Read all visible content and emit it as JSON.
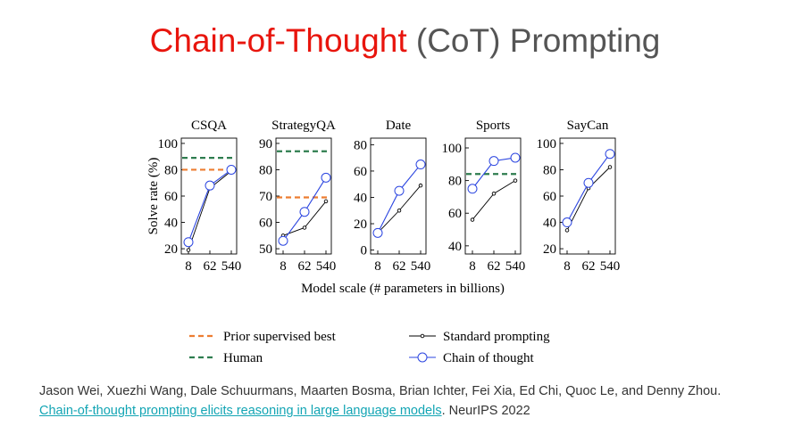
{
  "slide": {
    "title_main": "Chain-of-Thought",
    "title_rest": "(CoT) Prompting",
    "citation_authors": "Jason Wei, Xuezhi Wang, Dale Schuurmans, Maarten Bosma, Brian Ichter, Fei Xia, Ed Chi, Quoc Le, and Denny Zhou.",
    "citation_link": "Chain-of-thought prompting elicits reasoning in large language models",
    "citation_venue": ". NeurIPS 2022"
  },
  "colors": {
    "title_red": "#e8150d",
    "prior_best": "#ed7d31",
    "human": "#2e7d4f",
    "standard": "#000000",
    "cot": "#2b45e0",
    "link": "#13a5b4"
  },
  "chart_data": {
    "type": "line",
    "xlabel": "Model scale (# parameters in billions)",
    "ylabel": "Solve rate (%)",
    "x": [
      8,
      62,
      540
    ],
    "legend": {
      "prior": "Prior supervised best",
      "human": "Human",
      "standard": "Standard prompting",
      "cot": "Chain of thought"
    },
    "panels": [
      {
        "title": "CSQA",
        "ylim": [
          16,
          104
        ],
        "yticks": [
          20,
          40,
          60,
          80,
          100
        ],
        "prior_best": 80,
        "human": 89,
        "series": [
          {
            "key": "standard",
            "values": [
              19,
              66,
              79
            ]
          },
          {
            "key": "cot",
            "values": [
              25,
              68,
              80
            ]
          }
        ]
      },
      {
        "title": "StrategyQA",
        "ylim": [
          48,
          92
        ],
        "yticks": [
          50,
          60,
          70,
          80,
          90
        ],
        "prior_best": 69.5,
        "human": 87,
        "series": [
          {
            "key": "standard",
            "values": [
              55,
              58,
              68
            ]
          },
          {
            "key": "cot",
            "values": [
              53,
              64,
              77
            ]
          }
        ]
      },
      {
        "title": "Date",
        "ylim": [
          -3,
          85
        ],
        "yticks": [
          0,
          20,
          40,
          60,
          80
        ],
        "series": [
          {
            "key": "standard",
            "values": [
              13,
              30,
              49
            ]
          },
          {
            "key": "cot",
            "values": [
              13,
              45,
              65
            ]
          }
        ]
      },
      {
        "title": "Sports",
        "ylim": [
          35,
          106
        ],
        "yticks": [
          40,
          60,
          80,
          100
        ],
        "human": 84,
        "series": [
          {
            "key": "standard",
            "values": [
              56,
              72,
              80
            ]
          },
          {
            "key": "cot",
            "values": [
              75,
              92,
              94
            ]
          }
        ]
      },
      {
        "title": "SayCan",
        "ylim": [
          16,
          104
        ],
        "yticks": [
          20,
          40,
          60,
          80,
          100
        ],
        "series": [
          {
            "key": "standard",
            "values": [
              34,
              66,
              82
            ]
          },
          {
            "key": "cot",
            "values": [
              40,
              70,
              92
            ]
          }
        ]
      }
    ]
  }
}
